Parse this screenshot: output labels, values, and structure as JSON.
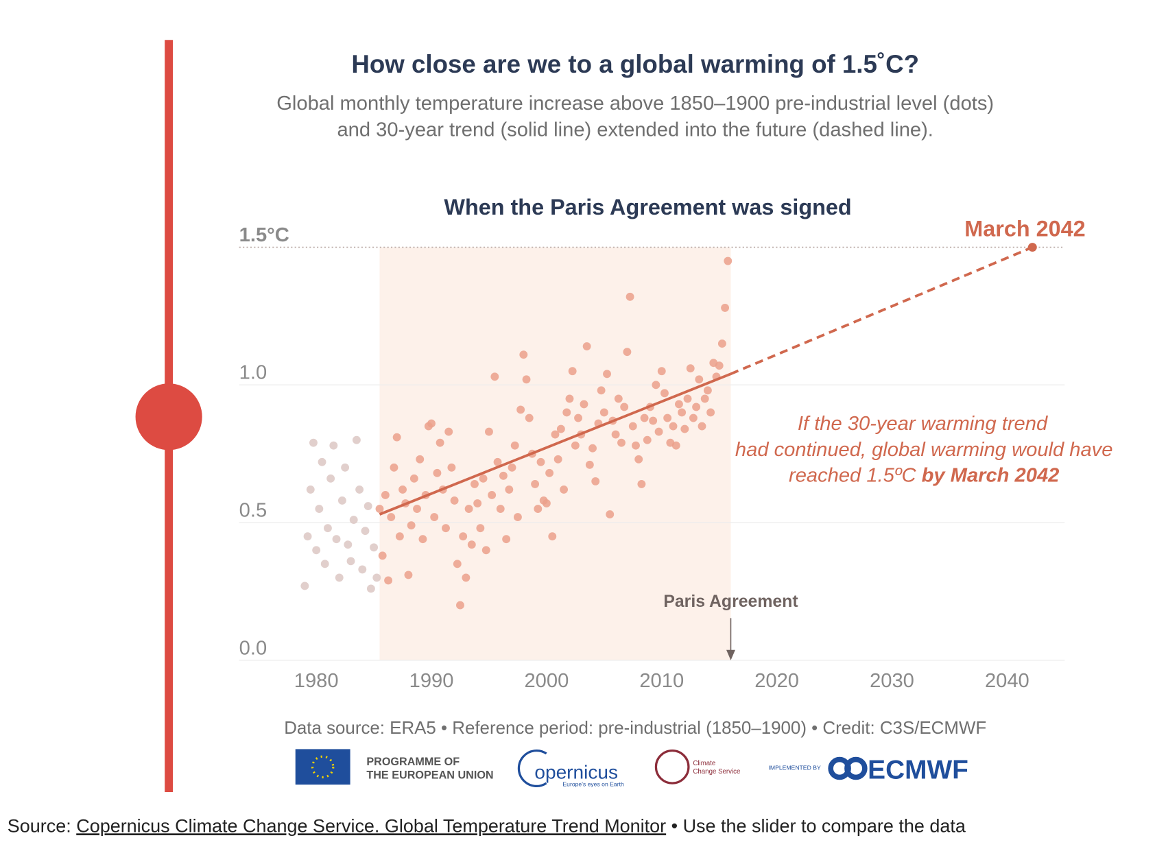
{
  "chart_data": {
    "type": "scatter",
    "title": "How close are we to a global warming of 1.5˚C?",
    "subtitle": [
      "Global monthly temperature increase above 1850–1900 pre-industrial level (dots)",
      "and 30-year trend (solid line) extended into the future (dashed line)."
    ],
    "highlight_title": "When the Paris Agreement was signed",
    "highlight_range": [
      1985.5,
      2016
    ],
    "xlim": [
      1973.3,
      2045
    ],
    "ylim": [
      0,
      1.5
    ],
    "xticks": [
      1980,
      1990,
      2000,
      2010,
      2020,
      2030,
      2040
    ],
    "yticks": [
      {
        "value": 0,
        "label": "0.0"
      },
      {
        "value": 0.5,
        "label": "0.5"
      },
      {
        "value": 1,
        "label": "1.0"
      },
      {
        "value": 1.5,
        "label": "1.5°C"
      }
    ],
    "grid": true,
    "series": [
      {
        "color": "#dcc7c3",
        "x": [
          1979,
          1979.25,
          1979.5,
          1979.75,
          1980,
          1980.25,
          1980.5,
          1980.75,
          1981,
          1981.25,
          1981.5,
          1981.75,
          1982,
          1982.25,
          1982.5,
          1982.75,
          1983,
          1983.25,
          1983.5,
          1983.75,
          1984,
          1984.25,
          1984.5,
          1984.75,
          1985,
          1985.25
        ],
        "values": [
          0.27,
          0.45,
          0.62,
          0.79,
          0.4,
          0.55,
          0.72,
          0.35,
          0.48,
          0.66,
          0.78,
          0.44,
          0.3,
          0.58,
          0.7,
          0.42,
          0.36,
          0.51,
          0.8,
          0.62,
          0.33,
          0.47,
          0.56,
          0.26,
          0.41,
          0.3
        ]
      },
      {
        "color": "#eba08b",
        "x": [
          1985.5,
          1985.75,
          1986,
          1986.25,
          1986.5,
          1986.75,
          1987,
          1987.25,
          1987.5,
          1987.75,
          1988,
          1988.25,
          1988.5,
          1988.75,
          1989,
          1989.25,
          1989.5,
          1989.75,
          1990,
          1990.25,
          1990.5,
          1990.75,
          1991,
          1991.25,
          1991.5,
          1991.75,
          1992,
          1992.25,
          1992.5,
          1992.75,
          1993,
          1993.25,
          1993.5,
          1993.75,
          1994,
          1994.25,
          1994.5,
          1994.75,
          1995,
          1995.25,
          1995.5,
          1995.75,
          1996,
          1996.25,
          1996.5,
          1996.75,
          1997,
          1997.25,
          1997.5,
          1997.75,
          1998,
          1998.25,
          1998.5,
          1998.75,
          1999,
          1999.25,
          1999.5,
          1999.75,
          2000,
          2000.25,
          2000.5,
          2000.75,
          2001,
          2001.25,
          2001.5,
          2001.75,
          2002,
          2002.25,
          2002.5,
          2002.75,
          2003,
          2003.25,
          2003.5,
          2003.75,
          2004,
          2004.25,
          2004.5,
          2004.75,
          2005,
          2005.25,
          2005.5,
          2005.75,
          2006,
          2006.25,
          2006.5,
          2006.75,
          2007,
          2007.25,
          2007.5,
          2007.75,
          2008,
          2008.25,
          2008.5,
          2008.75,
          2009,
          2009.25,
          2009.5,
          2009.75,
          2010,
          2010.25,
          2010.5,
          2010.75,
          2011,
          2011.25,
          2011.5,
          2011.75,
          2012,
          2012.25,
          2012.5,
          2012.75,
          2013,
          2013.25,
          2013.5,
          2013.75,
          2014,
          2014.25,
          2014.5,
          2014.75,
          2015,
          2015.25,
          2015.5,
          2015.75
        ],
        "values": [
          0.55,
          0.38,
          0.6,
          0.29,
          0.52,
          0.7,
          0.81,
          0.45,
          0.62,
          0.57,
          0.31,
          0.49,
          0.66,
          0.55,
          0.73,
          0.44,
          0.6,
          0.85,
          0.86,
          0.52,
          0.68,
          0.79,
          0.62,
          0.48,
          0.83,
          0.7,
          0.58,
          0.35,
          0.2,
          0.45,
          0.3,
          0.55,
          0.42,
          0.64,
          0.57,
          0.48,
          0.66,
          0.4,
          0.83,
          0.6,
          1.03,
          0.72,
          0.55,
          0.67,
          0.44,
          0.62,
          0.7,
          0.78,
          0.52,
          0.91,
          1.11,
          1.02,
          0.88,
          0.75,
          0.64,
          0.55,
          0.72,
          0.58,
          0.57,
          0.68,
          0.45,
          0.82,
          0.73,
          0.84,
          0.62,
          0.9,
          0.95,
          1.05,
          0.78,
          0.88,
          0.82,
          0.93,
          1.14,
          0.71,
          0.77,
          0.65,
          0.86,
          0.98,
          0.9,
          1.04,
          0.53,
          0.87,
          0.82,
          0.95,
          0.79,
          0.92,
          1.12,
          1.32,
          0.85,
          0.78,
          0.73,
          0.64,
          0.88,
          0.8,
          0.92,
          0.87,
          1,
          0.83,
          1.05,
          0.97,
          0.88,
          0.79,
          0.85,
          0.78,
          0.93,
          0.9,
          0.84,
          0.95,
          1.06,
          0.88,
          0.92,
          1.02,
          0.85,
          0.95,
          0.98,
          0.9,
          1.08,
          1.03,
          1.07,
          1.15,
          1.28,
          1.45
        ]
      }
    ],
    "trend": [
      {
        "style": "solid",
        "color": "#d0684e",
        "x": [
          1985.5,
          2016
        ],
        "values": [
          0.53,
          1.04
        ]
      },
      {
        "style": "dashed",
        "color": "#d0684e",
        "x": [
          2016,
          2042.2
        ],
        "values": [
          1.04,
          1.5
        ]
      }
    ],
    "endpoint": {
      "label": "March 2042",
      "x": 2042.2,
      "value": 1.5
    },
    "annotations": [
      {
        "text": "Paris Agreement",
        "x": 2016
      }
    ],
    "note": {
      "lines": [
        "If the 30-year warming trend",
        "had continued, global warming would have",
        "reached 1.5ºC "
      ],
      "bold": "by March 2042"
    },
    "footnote": "Data source: ERA5 • Reference period: pre-industrial (1850–1900) • Credit: C3S/ECMWF"
  },
  "logos": {
    "eu": [
      "PROGRAMME OF",
      "THE EUROPEAN UNION"
    ],
    "copernicus": [
      "opernicus",
      "Europe's eyes on Earth"
    ],
    "c3s": [
      "Climate",
      "Change Service"
    ],
    "ecmwf": [
      "IMPLEMENTED BY",
      "ECMWF"
    ]
  },
  "source": {
    "prefix": "Source: ",
    "link": "Copernicus Climate Change Service. Global Temperature Trend Monitor",
    "suffix": " • Use the slider to compare the data"
  }
}
